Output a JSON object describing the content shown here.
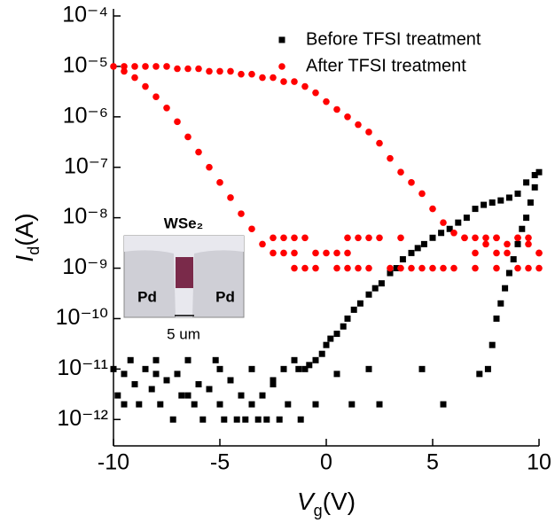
{
  "chart_data": {
    "type": "scatter",
    "xlabel": {
      "symbol": "V",
      "subscript": "g",
      "unit": "(V)"
    },
    "ylabel": {
      "symbol": "I",
      "subscript": "d",
      "unit": "(A)"
    },
    "xlim": [
      -10,
      10
    ],
    "xticks": [
      -10,
      -5,
      0,
      5,
      10
    ],
    "ylim": [
      3e-13,
      0.0001
    ],
    "log_y": true,
    "yticks": [
      {
        "value": 1e-12,
        "label": "10⁻¹²"
      },
      {
        "value": 1e-11,
        "label": "10⁻¹¹"
      },
      {
        "value": 1e-10,
        "label": "10⁻¹⁰"
      },
      {
        "value": 1e-09,
        "label": "10⁻⁹"
      },
      {
        "value": 1e-08,
        "label": "10⁻⁸"
      },
      {
        "value": 1e-07,
        "label": "10⁻⁷"
      },
      {
        "value": 1e-06,
        "label": "10⁻⁶"
      },
      {
        "value": 1e-05,
        "label": "10⁻⁵"
      },
      {
        "value": 0.0001,
        "label": "10⁻⁴"
      }
    ],
    "legend": "upper right",
    "series": [
      {
        "name": "Before TFSI treatment",
        "color": "#000000",
        "marker": "square",
        "x": [
          -10,
          -9.8,
          -9.5,
          -9.2,
          -9,
          -8.8,
          -8.5,
          -8.2,
          -8,
          -7.8,
          -7.5,
          -7.2,
          -7,
          -6.8,
          -6.5,
          -6.2,
          -6,
          -5.8,
          -5.5,
          -5.2,
          -5,
          -4.8,
          -4.5,
          -4.2,
          -4,
          -3.8,
          -3.5,
          -3.2,
          -3,
          -2.8,
          -2.5,
          -2.2,
          -2,
          -1.8,
          -1.5,
          -1.2,
          -1,
          -0.8,
          -0.5,
          -0.2,
          0,
          0.2,
          0.5,
          0.8,
          1,
          1.3,
          1.6,
          2,
          2.3,
          2.6,
          3,
          3.3,
          3.6,
          4,
          4.3,
          4.6,
          5,
          5.4,
          5.8,
          6.2,
          6.6,
          7,
          7.4,
          7.8,
          8.2,
          8.6,
          9,
          9.4,
          9.8,
          10,
          9.8,
          9.6,
          9.4,
          9.2,
          9,
          8.8,
          8.6,
          8.4,
          8.2,
          8,
          7.8,
          7.6,
          7.2,
          5.5,
          4.5,
          2.5,
          2,
          1.2,
          0.5,
          -0.5,
          -1.3,
          -2.5,
          -3.5,
          -5,
          -6.5,
          -8,
          -9.5
        ],
        "values": [
          1e-11,
          3e-12,
          8e-12,
          1.5e-11,
          5e-12,
          2e-12,
          1e-11,
          4e-12,
          1.5e-11,
          2e-12,
          6e-12,
          1e-12,
          8e-12,
          3e-12,
          1.5e-11,
          2e-12,
          5e-12,
          1e-12,
          4e-12,
          1.5e-11,
          2e-12,
          1e-12,
          6e-12,
          1e-12,
          3e-12,
          1e-12,
          1e-11,
          1e-12,
          3e-12,
          1e-12,
          6e-12,
          1e-12,
          1e-11,
          2e-12,
          1.5e-11,
          1e-12,
          1e-11,
          1.2e-11,
          1.5e-11,
          2e-11,
          3e-11,
          4e-11,
          5e-11,
          7e-11,
          1e-10,
          1.5e-10,
          2e-10,
          3e-10,
          4e-10,
          5e-10,
          8e-10,
          1e-09,
          1.5e-09,
          2e-09,
          2.5e-09,
          3e-09,
          4e-09,
          5e-09,
          6e-09,
          8e-09,
          1e-08,
          1.5e-08,
          1.8e-08,
          2e-08,
          2.2e-08,
          2.5e-08,
          3e-08,
          5e-08,
          7e-08,
          8e-08,
          4e-08,
          2e-08,
          1e-08,
          6e-09,
          3e-09,
          1.5e-09,
          8e-10,
          4e-10,
          2e-10,
          1e-10,
          3e-11,
          1e-11,
          8e-12,
          2e-12,
          1e-11,
          2e-12,
          1e-11,
          2e-12,
          8e-12,
          2e-12,
          1e-11,
          5e-12,
          2e-12,
          1e-11,
          3e-12,
          8e-12,
          2e-12
        ]
      },
      {
        "name": "After TFSI treatment",
        "color": "#ff0000",
        "marker": "circle",
        "x": [
          -10,
          -9.5,
          -9,
          -8.5,
          -8,
          -7.5,
          -7,
          -6.5,
          -6,
          -5.5,
          -5,
          -4.5,
          -4,
          -3.5,
          -3,
          -2.5,
          -2,
          -1.5,
          -1,
          -0.5,
          0,
          0.5,
          1,
          1.5,
          2,
          2.5,
          3,
          3.5,
          4,
          4.5,
          5,
          5.5,
          6,
          6.5,
          7,
          7.5,
          8,
          8.5,
          9,
          9.5,
          10,
          -9.5,
          -9,
          -8.5,
          -8,
          -7.5,
          -7,
          -6.5,
          -6,
          -5.5,
          -5,
          -4.5,
          -4,
          -3.5,
          -3,
          -2.5,
          -2,
          -1.5,
          -1,
          1,
          1.5,
          2,
          2.5,
          3.5,
          6.5,
          7.5,
          8,
          9,
          9.5,
          -2.5,
          -2,
          -1.5,
          -0.5,
          0,
          0.5,
          1,
          7,
          8,
          8.5,
          10,
          -1.5,
          -1,
          -0.5,
          0.5,
          1,
          1.5,
          2,
          3,
          3.5,
          4,
          4.5,
          5,
          5.5,
          6,
          7,
          8,
          9,
          9.5,
          10
        ],
        "values": [
          1e-05,
          1e-05,
          1e-05,
          1e-05,
          1e-05,
          1e-05,
          9e-06,
          9e-06,
          9e-06,
          8e-06,
          8e-06,
          8e-06,
          7e-06,
          7e-06,
          6e-06,
          6e-06,
          5e-06,
          5e-06,
          4e-06,
          3e-06,
          2e-06,
          1.4e-06,
          1e-06,
          7e-07,
          5e-07,
          3e-07,
          1.5e-07,
          8e-08,
          5e-08,
          3e-08,
          1.5e-08,
          8e-09,
          5e-09,
          4e-09,
          4e-09,
          3e-09,
          4e-09,
          3e-09,
          4e-09,
          3e-09,
          2e-09,
          8e-06,
          6e-06,
          4e-06,
          2.5e-06,
          1.5e-06,
          8e-07,
          4e-07,
          2e-07,
          1e-07,
          5e-08,
          2.5e-08,
          1.2e-08,
          6e-09,
          3e-09,
          4e-09,
          4e-09,
          4e-09,
          4e-09,
          4e-09,
          4e-09,
          4e-09,
          4e-09,
          4e-09,
          4e-09,
          4e-09,
          4e-09,
          4e-09,
          4e-09,
          2e-09,
          2e-09,
          2e-09,
          2e-09,
          2e-09,
          2e-09,
          2e-09,
          2e-09,
          2e-09,
          2e-09,
          2e-09,
          1e-09,
          1e-09,
          1e-09,
          1e-09,
          1e-09,
          1e-09,
          1e-09,
          1e-09,
          1e-09,
          1e-09,
          1e-09,
          1e-09,
          1e-09,
          1e-09,
          1e-09,
          1e-09,
          1e-09,
          1e-09,
          1e-09
        ]
      }
    ],
    "annotations": [
      "WSe₂",
      "Pd",
      "Pd",
      "5 um"
    ]
  }
}
